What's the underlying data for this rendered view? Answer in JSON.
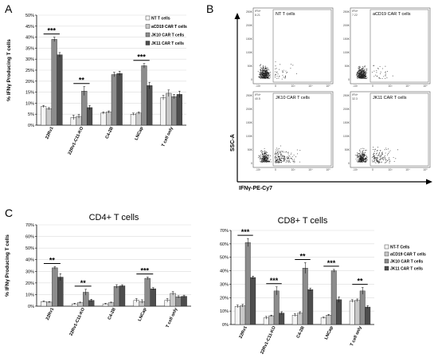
{
  "panels": {
    "a": "A",
    "b": "B",
    "c": "C"
  },
  "colors": {
    "nt": "#f4f4f4",
    "acd19": "#c8c8c8",
    "jk10": "#8c8c8c",
    "jk11": "#4d4d4d"
  },
  "chart_data": [
    {
      "id": "chartA",
      "type": "bar",
      "title": "",
      "ylabel": "% IFNγ Producing T cells",
      "ylim": [
        0,
        50
      ],
      "yticks": [
        "0%",
        "5%",
        "10%",
        "15%",
        "20%",
        "25%",
        "30%",
        "35%",
        "40%",
        "45%",
        "50%"
      ],
      "categories": [
        "22Rv1",
        "22Rv1-C11-KO",
        "C4-2B",
        "LNCap",
        "T cell only"
      ],
      "series": [
        {
          "name": "NT T cells",
          "values": [
            8.5,
            3.5,
            5.5,
            5,
            12.5
          ],
          "errors": [
            0.5,
            1,
            0.5,
            0.5,
            1
          ]
        },
        {
          "name": "aCD19 CAR T cells",
          "values": [
            7.5,
            4,
            6,
            5.5,
            14.5
          ],
          "errors": [
            0.5,
            0.8,
            0.5,
            0.5,
            1.5
          ]
        },
        {
          "name": "JK10 CAR T cells",
          "values": [
            39,
            15.5,
            23,
            27,
            13
          ],
          "errors": [
            1,
            2,
            1,
            1,
            1
          ]
        },
        {
          "name": "JK11 CAR T cells",
          "values": [
            32,
            8,
            23.5,
            18,
            14
          ],
          "errors": [
            1,
            1,
            1,
            1.5,
            1.5
          ]
        }
      ],
      "significance": [
        {
          "category": 0,
          "label": "***"
        },
        {
          "category": 1,
          "label": "**"
        },
        {
          "category": 3,
          "label": "***"
        }
      ],
      "legend": "top-right"
    },
    {
      "id": "chartC1",
      "type": "bar",
      "title": "CD4+ T cells",
      "ylabel": "% IFNγ Producing T cells",
      "ylim": [
        0,
        70
      ],
      "yticks": [
        "0%",
        "10%",
        "20%",
        "30%",
        "40%",
        "50%",
        "60%",
        "70%"
      ],
      "categories": [
        "22Rv1",
        "22Rv1-C11-KO",
        "C4-2B",
        "LNCap",
        "T cell only"
      ],
      "series": [
        {
          "name": "NT T cells",
          "values": [
            4,
            2,
            2,
            5,
            5
          ],
          "errors": [
            0.5,
            0.5,
            0.5,
            1.5,
            1.5
          ]
        },
        {
          "name": "aCD19 CAR T cells",
          "values": [
            3.5,
            3,
            3,
            4,
            11
          ],
          "errors": [
            0.5,
            0.5,
            0.5,
            1.5,
            1.5
          ]
        },
        {
          "name": "JK10 CAR T cells",
          "values": [
            33,
            12,
            17,
            24,
            8
          ],
          "errors": [
            1,
            2.5,
            1.5,
            1,
            1
          ]
        },
        {
          "name": "JK11 CAR T cells",
          "values": [
            25,
            5,
            17.5,
            15,
            8.5
          ],
          "errors": [
            3,
            1,
            1,
            1,
            1
          ]
        }
      ],
      "significance": [
        {
          "category": 0,
          "label": "**"
        },
        {
          "category": 1,
          "label": "**"
        },
        {
          "category": 3,
          "label": "***"
        }
      ]
    },
    {
      "id": "chartC2",
      "type": "bar",
      "title": "CD8+ T cells",
      "ylabel": "",
      "ylim": [
        0,
        70
      ],
      "yticks": [
        "0%",
        "10%",
        "20%",
        "30%",
        "40%",
        "50%",
        "60%",
        "70%"
      ],
      "categories": [
        "22Rv1",
        "22Rv1-C11-KO",
        "C4-2B",
        "LNCap",
        "T cell only"
      ],
      "series": [
        {
          "name": "NT-T Cells",
          "values": [
            13.5,
            5,
            7,
            5,
            17.5
          ],
          "errors": [
            1,
            1,
            1,
            0.5,
            1
          ]
        },
        {
          "name": "aCD19 CAR T cells",
          "values": [
            14,
            6.5,
            8.5,
            7,
            18
          ],
          "errors": [
            1,
            0.5,
            1,
            0.5,
            1
          ]
        },
        {
          "name": "JK10 CAR T cells",
          "values": [
            61,
            25,
            42,
            40,
            25
          ],
          "errors": [
            3,
            3,
            4,
            1,
            2.5
          ]
        },
        {
          "name": "JK11 CAR T cells",
          "values": [
            35,
            8.5,
            26,
            18.5,
            13
          ],
          "errors": [
            1,
            1,
            1,
            2,
            1
          ]
        }
      ],
      "significance": [
        {
          "category": 0,
          "label": "***"
        },
        {
          "category": 1,
          "label": "***"
        },
        {
          "category": 2,
          "label": "**"
        },
        {
          "category": 3,
          "label": "***"
        },
        {
          "category": 4,
          "label": "**"
        }
      ],
      "legend": "right"
    }
  ],
  "flow": {
    "yaxis": "SSC-A",
    "xaxis": "IFNγ-PE-Cy7",
    "plots": [
      {
        "name": "NT T cells",
        "gate": "IFN+",
        "pct": "8.21"
      },
      {
        "name": "aCD19 CAR T cells",
        "gate": "IFN+",
        "pct": "7.22"
      },
      {
        "name": "JK10 CAR T cells",
        "gate": "IFN+",
        "pct": "40.5"
      },
      {
        "name": "JK11 CAR T cells",
        "gate": "IFN+",
        "pct": "32.3"
      }
    ],
    "yticks": [
      "250K",
      "200K",
      "150K",
      "100K",
      "50K",
      "0"
    ],
    "xticks": [
      "-10³",
      "0",
      "10³",
      "10⁴",
      "10⁵"
    ]
  }
}
